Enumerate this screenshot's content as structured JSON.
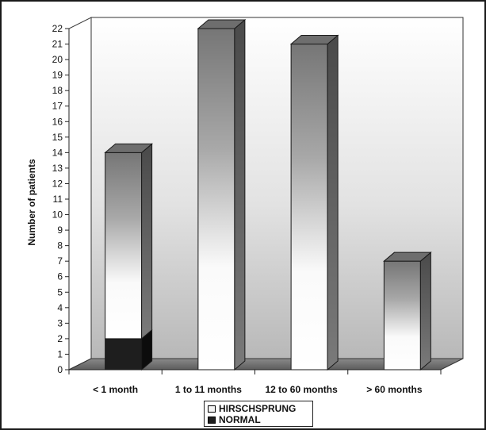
{
  "chart_data": {
    "type": "bar",
    "stacked": true,
    "three_d": true,
    "categories": [
      "< 1 month",
      "1 to 11 months",
      "12 to 60 months",
      "> 60 months"
    ],
    "series": [
      {
        "name": "NORMAL",
        "values": [
          2,
          0,
          0,
          0
        ],
        "color": "#1e1e1e"
      },
      {
        "name": "HIRSCHSPRUNG",
        "values": [
          12,
          22,
          21,
          7
        ],
        "color": "#f4f4f4"
      }
    ],
    "ylabel": "Number of patients",
    "xlabel": "",
    "ylim": [
      0,
      22
    ],
    "yticks": [
      0,
      1,
      2,
      3,
      4,
      5,
      6,
      7,
      8,
      9,
      10,
      11,
      12,
      13,
      14,
      15,
      16,
      17,
      18,
      19,
      20,
      21,
      22
    ],
    "grid": false,
    "legend_position": "bottom"
  }
}
